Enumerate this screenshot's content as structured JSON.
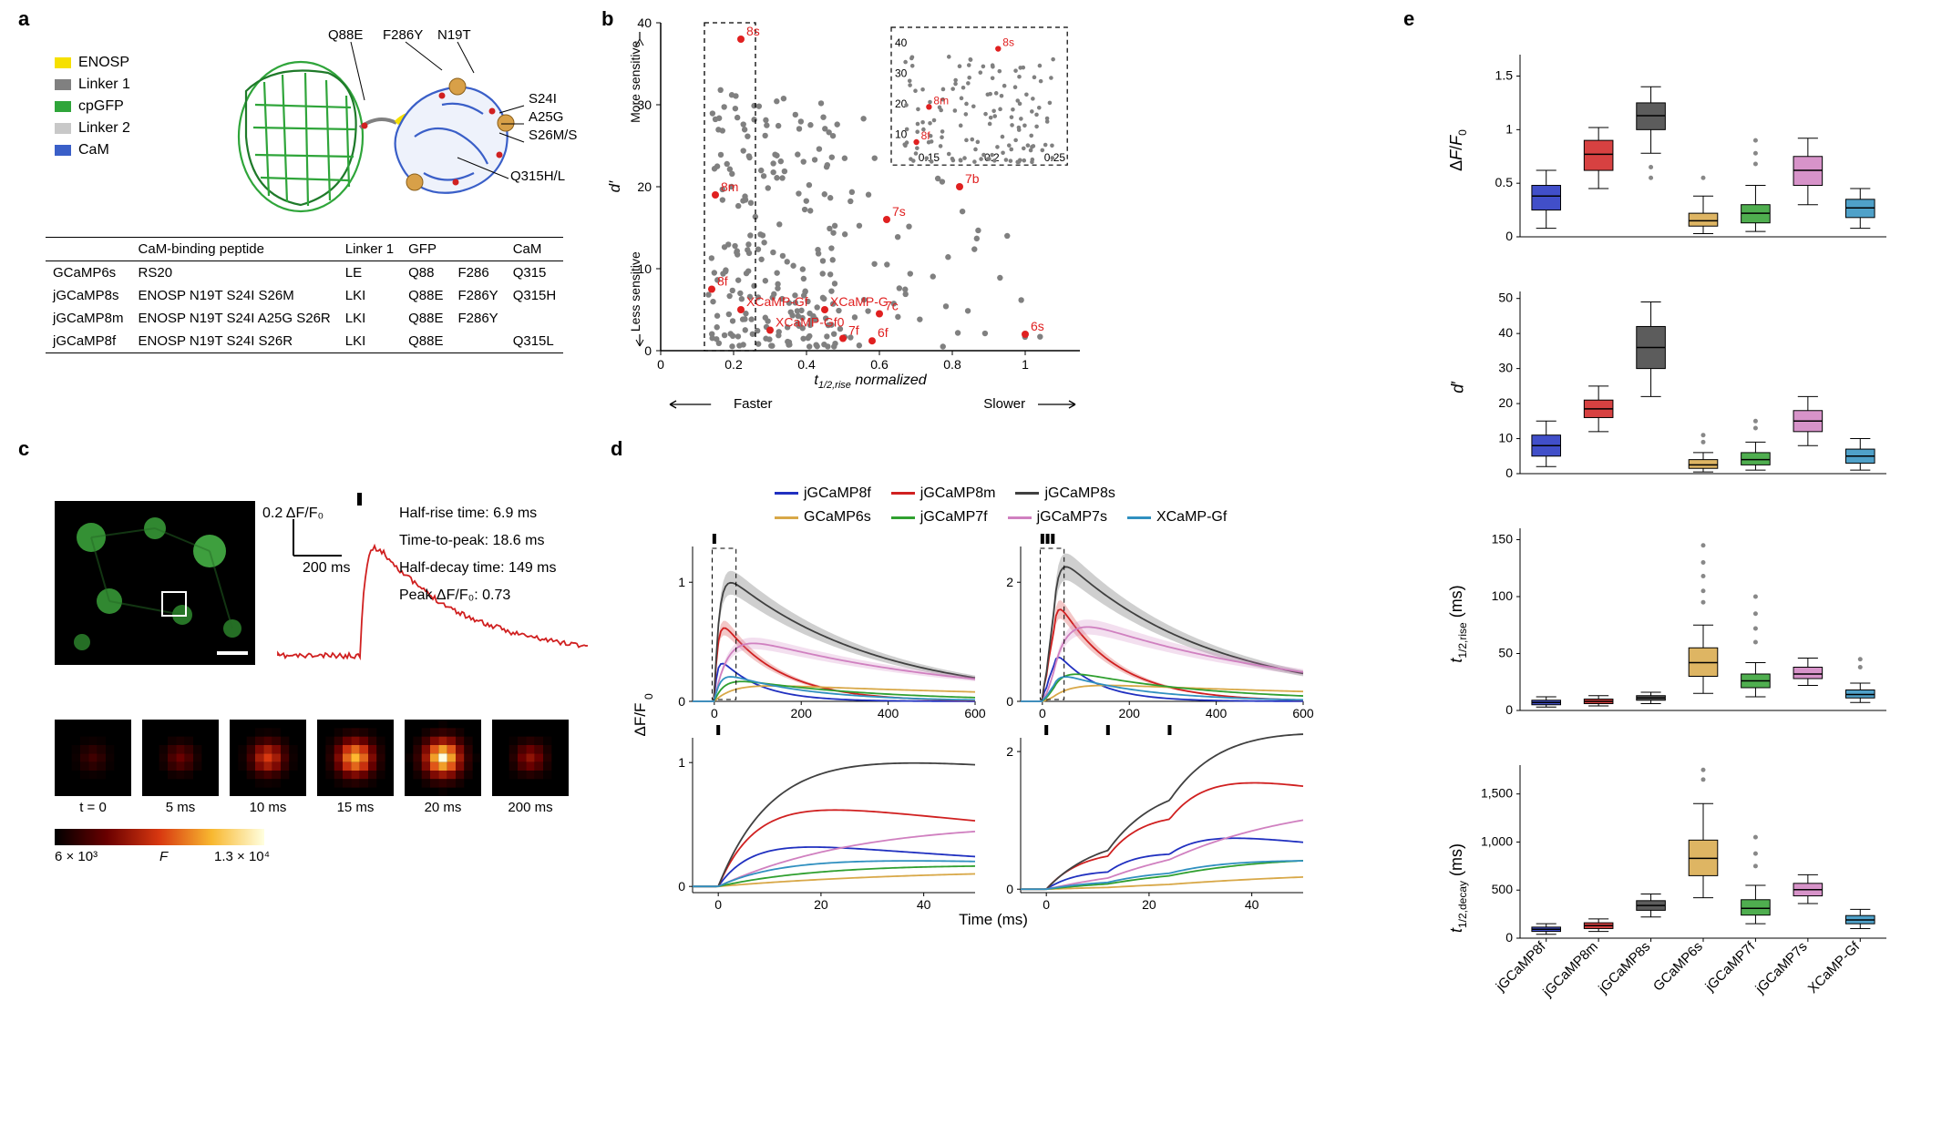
{
  "panels": {
    "a": "a",
    "b": "b",
    "c": "c",
    "d": "d",
    "e": "e"
  },
  "colors": {
    "enosp": "#f6e000",
    "linker1": "#808080",
    "cpgfp": "#2fa53a",
    "linker2": "#c8c8c8",
    "cam": "#3a5fc8",
    "cam_light": "#a8b8e8",
    "calcium": "#d8a048",
    "jgcamp8f": "#2030c0",
    "jgcamp8m": "#d02020",
    "jgcamp8s": "#404040",
    "gcamp6s": "#d8a848",
    "jgcamp7f": "#30a030",
    "jgcamp7s": "#d080c0",
    "xcampgf": "#3090c0",
    "red_label": "#e02020",
    "grid": "#000000"
  },
  "panel_a": {
    "legend": [
      {
        "label": "ENOSP",
        "color_key": "enosp"
      },
      {
        "label": "Linker 1",
        "color_key": "linker1"
      },
      {
        "label": "cpGFP",
        "color_key": "cpgfp"
      },
      {
        "label": "Linker 2",
        "color_key": "linker2"
      },
      {
        "label": "CaM",
        "color_key": "cam"
      }
    ],
    "mutations": [
      "Q88E",
      "F286Y",
      "N19T",
      "S24I",
      "A25G",
      "S26M/S",
      "Q315H/L"
    ],
    "table": {
      "headers": [
        "",
        "CaM-binding peptide",
        "Linker 1",
        "GFP",
        "",
        "CaM"
      ],
      "rows": [
        [
          "GCaMP6s",
          "RS20",
          "LE",
          "Q88",
          "F286",
          "Q315"
        ],
        [
          "jGCaMP8s",
          "ENOSP N19T S24I          S26M",
          "LKI",
          "Q88E",
          "F286Y",
          "Q315H"
        ],
        [
          "jGCaMP8m",
          "ENOSP N19T S24I  A25G  S26R",
          "LKI",
          "Q88E",
          "F286Y",
          ""
        ],
        [
          "jGCaMP8f",
          "ENOSP N19T S24I          S26R",
          "LKI",
          "Q88E",
          "",
          "Q315L"
        ]
      ]
    }
  },
  "panel_b": {
    "x_label": "t₁/₂,rise normalized",
    "x_faster": "Faster",
    "x_slower": "Slower",
    "y_more": "More sensitive",
    "y_less": "Less sensitive",
    "y_axis_label": "d′",
    "ylim": [
      0,
      40
    ],
    "xlim": [
      0,
      1.15
    ],
    "xticks": [
      0,
      0.2,
      0.4,
      0.6,
      0.8,
      1.0
    ],
    "yticks": [
      0,
      10,
      20,
      30,
      40
    ],
    "named_points": [
      {
        "label": "8s",
        "x": 0.22,
        "y": 38
      },
      {
        "label": "8m",
        "x": 0.15,
        "y": 19
      },
      {
        "label": "8f",
        "x": 0.14,
        "y": 7.5
      },
      {
        "label": "7b",
        "x": 0.82,
        "y": 20
      },
      {
        "label": "7s",
        "x": 0.62,
        "y": 16
      },
      {
        "label": "7c",
        "x": 0.6,
        "y": 4.5
      },
      {
        "label": "7f",
        "x": 0.5,
        "y": 1.5
      },
      {
        "label": "6f",
        "x": 0.58,
        "y": 1.2
      },
      {
        "label": "6s",
        "x": 1.0,
        "y": 2
      },
      {
        "label": "XCaMP-G",
        "x": 0.45,
        "y": 5
      },
      {
        "label": "XCaMP-Gf",
        "x": 0.22,
        "y": 5
      },
      {
        "label": "XCaMP-Gf0",
        "x": 0.3,
        "y": 2.5
      }
    ],
    "inset": {
      "xlim": [
        0.12,
        0.26
      ],
      "ylim": [
        0,
        45
      ],
      "xticks": [
        0.15,
        0.2,
        0.25
      ],
      "yticks": [
        10,
        20,
        30,
        40
      ]
    }
  },
  "panel_c": {
    "scale_y": "0.2 ΔF/F₀",
    "scale_x": "200 ms",
    "stats": [
      "Half-rise time: 6.9 ms",
      "Time-to-peak: 18.6 ms",
      "Half-decay time: 149 ms",
      "Peak ΔF/F₀: 0.73"
    ],
    "timepoints": [
      "t = 0",
      "5 ms",
      "10 ms",
      "15 ms",
      "20 ms",
      "200 ms"
    ],
    "colorbar_min": "6 × 10³",
    "colorbar_label": "F",
    "colorbar_max": "1.3 × 10⁴"
  },
  "panel_d": {
    "legend": [
      {
        "label": "jGCaMP8f",
        "color_key": "jgcamp8f"
      },
      {
        "label": "jGCaMP8m",
        "color_key": "jgcamp8m"
      },
      {
        "label": "jGCaMP8s",
        "color_key": "jgcamp8s"
      },
      {
        "label": "GCaMP6s",
        "color_key": "gcamp6s"
      },
      {
        "label": "jGCaMP7f",
        "color_key": "jgcamp7f"
      },
      {
        "label": "jGCaMP7s",
        "color_key": "jgcamp7s"
      },
      {
        "label": "XCaMP-Gf",
        "color_key": "xcampgf"
      }
    ],
    "y_label": "ΔF/F₀",
    "x_label": "Time (ms)",
    "top_xlim": [
      -50,
      600
    ],
    "top_xticks": [
      0,
      200,
      400,
      600
    ],
    "bottom_xlim": [
      -5,
      50
    ],
    "bottom_xticks": [
      0,
      20,
      40
    ],
    "left_top_ylim": [
      0,
      1.3
    ],
    "left_top_yticks": [
      0,
      1
    ],
    "right_top_ylim": [
      0,
      2.6
    ],
    "right_top_yticks": [
      0,
      2
    ],
    "left_bottom_ylim": [
      -0.05,
      1.2
    ],
    "left_bottom_yticks": [
      0,
      1
    ],
    "right_bottom_ylim": [
      -0.05,
      2.2
    ],
    "right_bottom_yticks": [
      0,
      2
    ],
    "traces": {
      "jgcamp8f": {
        "peak1": 0.42,
        "peak3": 0.95,
        "rise": 7,
        "decay": 90
      },
      "jgcamp8m": {
        "peak1": 0.78,
        "peak3": 1.85,
        "rise": 8,
        "decay": 130
      },
      "jgcamp8s": {
        "peak1": 1.15,
        "peak3": 2.4,
        "rise": 11,
        "decay": 340
      },
      "gcamp6s": {
        "peak1": 0.16,
        "peak3": 0.3,
        "rise": 45,
        "decay": 850
      },
      "jgcamp7f": {
        "peak1": 0.22,
        "peak3": 0.55,
        "rise": 24,
        "decay": 310
      },
      "jgcamp7s": {
        "peak1": 0.62,
        "peak3": 1.45,
        "rise": 32,
        "decay": 500
      },
      "xcampgf": {
        "peak1": 0.27,
        "peak3": 0.5,
        "rise": 14,
        "decay": 190
      }
    }
  },
  "panel_e": {
    "categories": [
      "jGCaMP8f",
      "jGCaMP8m",
      "jGCaMP8s",
      "GCaMP6s",
      "jGCaMP7f",
      "jGCaMP7s",
      "XCaMP-Gf"
    ],
    "category_colors": [
      "jgcamp8f",
      "jgcamp8m",
      "jgcamp8s",
      "gcamp6s",
      "jgcamp7f",
      "jgcamp7s",
      "xcampgf"
    ],
    "plots": [
      {
        "label": "ΔF/F₀",
        "ylim": [
          0,
          1.7
        ],
        "yticks": [
          0,
          0.5,
          1.0,
          1.5
        ],
        "boxes": [
          {
            "q1": 0.25,
            "med": 0.38,
            "q3": 0.48,
            "lo": 0.08,
            "hi": 0.62,
            "out": []
          },
          {
            "q1": 0.62,
            "med": 0.77,
            "q3": 0.9,
            "lo": 0.45,
            "hi": 1.02,
            "out": []
          },
          {
            "q1": 1.0,
            "med": 1.13,
            "q3": 1.25,
            "lo": 0.78,
            "hi": 1.4,
            "out": [
              0.65,
              0.55
            ]
          },
          {
            "q1": 0.1,
            "med": 0.15,
            "q3": 0.22,
            "lo": 0.03,
            "hi": 0.38,
            "out": [
              0.55
            ]
          },
          {
            "q1": 0.13,
            "med": 0.22,
            "q3": 0.3,
            "lo": 0.05,
            "hi": 0.48,
            "out": [
              0.68,
              0.78,
              0.9
            ]
          },
          {
            "q1": 0.48,
            "med": 0.62,
            "q3": 0.75,
            "lo": 0.3,
            "hi": 0.92,
            "out": []
          },
          {
            "q1": 0.18,
            "med": 0.27,
            "q3": 0.35,
            "lo": 0.08,
            "hi": 0.45,
            "out": []
          }
        ]
      },
      {
        "label": "d′",
        "ylim": [
          0,
          52
        ],
        "yticks": [
          0,
          10,
          20,
          30,
          40,
          50
        ],
        "boxes": [
          {
            "q1": 5,
            "med": 8,
            "q3": 11,
            "lo": 2,
            "hi": 15,
            "out": []
          },
          {
            "q1": 16,
            "med": 18.5,
            "q3": 21,
            "lo": 12,
            "hi": 25,
            "out": []
          },
          {
            "q1": 30,
            "med": 36,
            "q3": 42,
            "lo": 22,
            "hi": 49,
            "out": []
          },
          {
            "q1": 1.5,
            "med": 2.5,
            "q3": 4,
            "lo": 0.5,
            "hi": 6,
            "out": [
              9,
              11
            ]
          },
          {
            "q1": 2.5,
            "med": 4,
            "q3": 6,
            "lo": 1,
            "hi": 9,
            "out": [
              13,
              15
            ]
          },
          {
            "q1": 12,
            "med": 15,
            "q3": 18,
            "lo": 8,
            "hi": 22,
            "out": []
          },
          {
            "q1": 3,
            "med": 5,
            "q3": 7,
            "lo": 1,
            "hi": 10,
            "out": []
          }
        ]
      },
      {
        "label": "t₁/₂,rise (ms)",
        "ylim": [
          0,
          160
        ],
        "yticks": [
          0,
          50,
          100,
          150
        ],
        "boxes": [
          {
            "q1": 5,
            "med": 7,
            "q3": 9,
            "lo": 3,
            "hi": 12,
            "out": []
          },
          {
            "q1": 6,
            "med": 8,
            "q3": 10,
            "lo": 4,
            "hi": 13,
            "out": []
          },
          {
            "q1": 9,
            "med": 11,
            "q3": 13,
            "lo": 6,
            "hi": 16,
            "out": []
          },
          {
            "q1": 30,
            "med": 42,
            "q3": 55,
            "lo": 15,
            "hi": 75,
            "out": [
              95,
              105,
              118,
              130,
              145
            ]
          },
          {
            "q1": 20,
            "med": 26,
            "q3": 32,
            "lo": 12,
            "hi": 42,
            "out": [
              60,
              72,
              85,
              100
            ]
          },
          {
            "q1": 28,
            "med": 32,
            "q3": 38,
            "lo": 22,
            "hi": 46,
            "out": []
          },
          {
            "q1": 11,
            "med": 14,
            "q3": 18,
            "lo": 7,
            "hi": 24,
            "out": [
              38,
              45
            ]
          }
        ]
      },
      {
        "label": "t₁/₂,decay (ms)",
        "ylim": [
          0,
          1800
        ],
        "yticks": [
          0,
          500,
          1000,
          1500
        ],
        "boxes": [
          {
            "q1": 70,
            "med": 92,
            "q3": 115,
            "lo": 40,
            "hi": 150,
            "out": []
          },
          {
            "q1": 100,
            "med": 130,
            "q3": 160,
            "lo": 70,
            "hi": 200,
            "out": []
          },
          {
            "q1": 290,
            "med": 340,
            "q3": 390,
            "lo": 220,
            "hi": 460,
            "out": []
          },
          {
            "q1": 650,
            "med": 830,
            "q3": 1020,
            "lo": 420,
            "hi": 1400,
            "out": [
              1650,
              1750
            ]
          },
          {
            "q1": 240,
            "med": 310,
            "q3": 400,
            "lo": 150,
            "hi": 550,
            "out": [
              750,
              880,
              1050
            ]
          },
          {
            "q1": 440,
            "med": 505,
            "q3": 570,
            "lo": 360,
            "hi": 660,
            "out": []
          },
          {
            "q1": 150,
            "med": 190,
            "q3": 235,
            "lo": 100,
            "hi": 300,
            "out": []
          }
        ]
      }
    ]
  }
}
